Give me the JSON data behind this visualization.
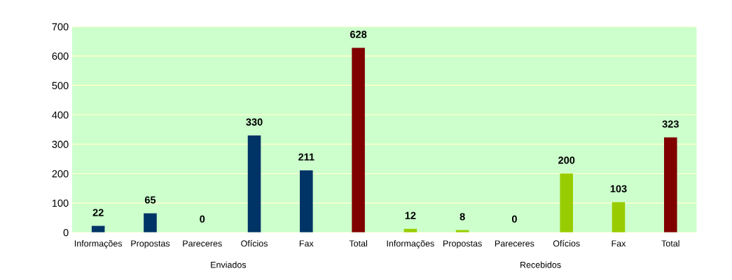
{
  "chart_data": {
    "type": "bar",
    "categories": [
      "Informações",
      "Propostas",
      "Pareceres",
      "Ofícios",
      "Fax",
      "Total",
      "Informações",
      "Propostas",
      "Pareceres",
      "Ofícios",
      "Fax",
      "Total"
    ],
    "values": [
      22,
      65,
      0,
      330,
      211,
      628,
      12,
      8,
      0,
      200,
      103,
      323
    ],
    "colors": [
      "#003366",
      "#003366",
      "#003366",
      "#003366",
      "#003366",
      "#800000",
      "#99cc00",
      "#99cc00",
      "#99cc00",
      "#99cc00",
      "#99cc00",
      "#800000"
    ],
    "ylim": [
      0,
      700
    ],
    "yticks": [
      0,
      100,
      200,
      300,
      400,
      500,
      600,
      700
    ],
    "grid": "y",
    "data_labels": true,
    "annotations": [
      "Enviados",
      "Recebidos"
    ]
  }
}
